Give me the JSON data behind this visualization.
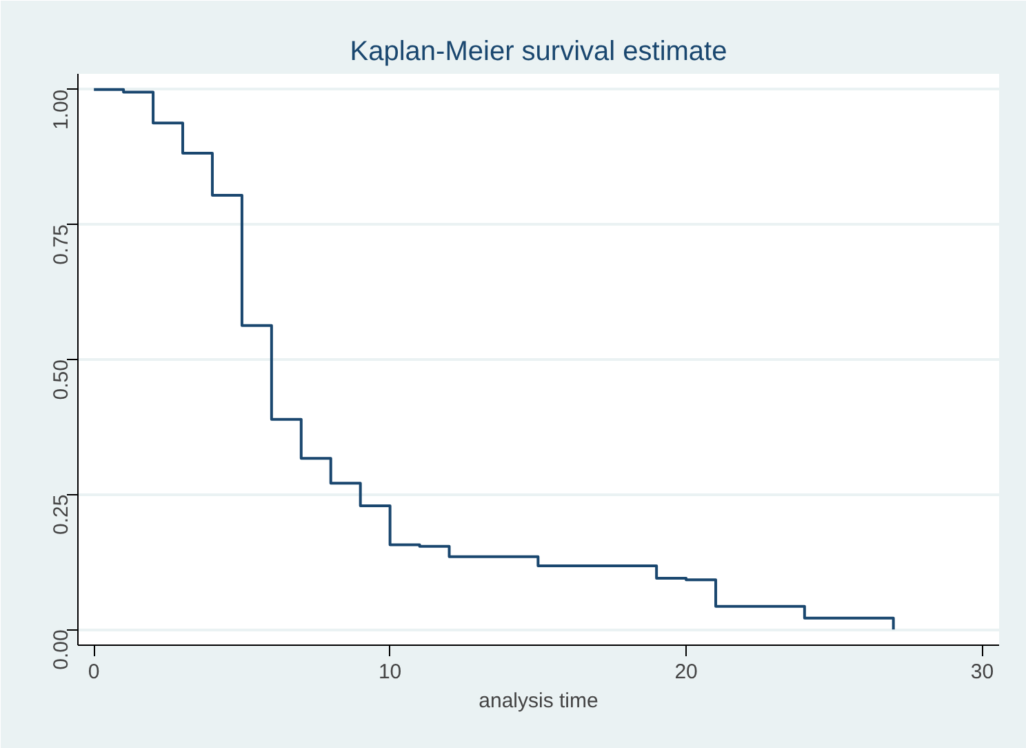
{
  "chart_data": {
    "type": "step",
    "title": "Kaplan-Meier survival estimate",
    "xlabel": "analysis time",
    "x": [
      0,
      1,
      2,
      3,
      4,
      5,
      6,
      7,
      8,
      9,
      10,
      11,
      12,
      15,
      19,
      20,
      21,
      24,
      27
    ],
    "series": [
      {
        "color": "#1a476f",
        "values": [
          1.0,
          0.995,
          0.938,
          0.882,
          0.804,
          0.563,
          0.389,
          0.317,
          0.271,
          0.229,
          0.157,
          0.154,
          0.135,
          0.118,
          0.095,
          0.092,
          0.043,
          0.021,
          0.0
        ]
      }
    ],
    "xlim": [
      -0.54,
      30.57
    ],
    "ylim": [
      -0.029,
      1.029
    ],
    "xticks": [
      0,
      10,
      20,
      30
    ],
    "yticks": [
      {
        "value": 0,
        "label": "0.00"
      },
      {
        "value": 0.25,
        "label": "0.25"
      },
      {
        "value": 0.5,
        "label": "0.50"
      },
      {
        "value": 0.75,
        "label": "0.75"
      },
      {
        "value": 1,
        "label": "1.00"
      }
    ],
    "grid": "y",
    "marker": "none",
    "line_style": "solid"
  }
}
